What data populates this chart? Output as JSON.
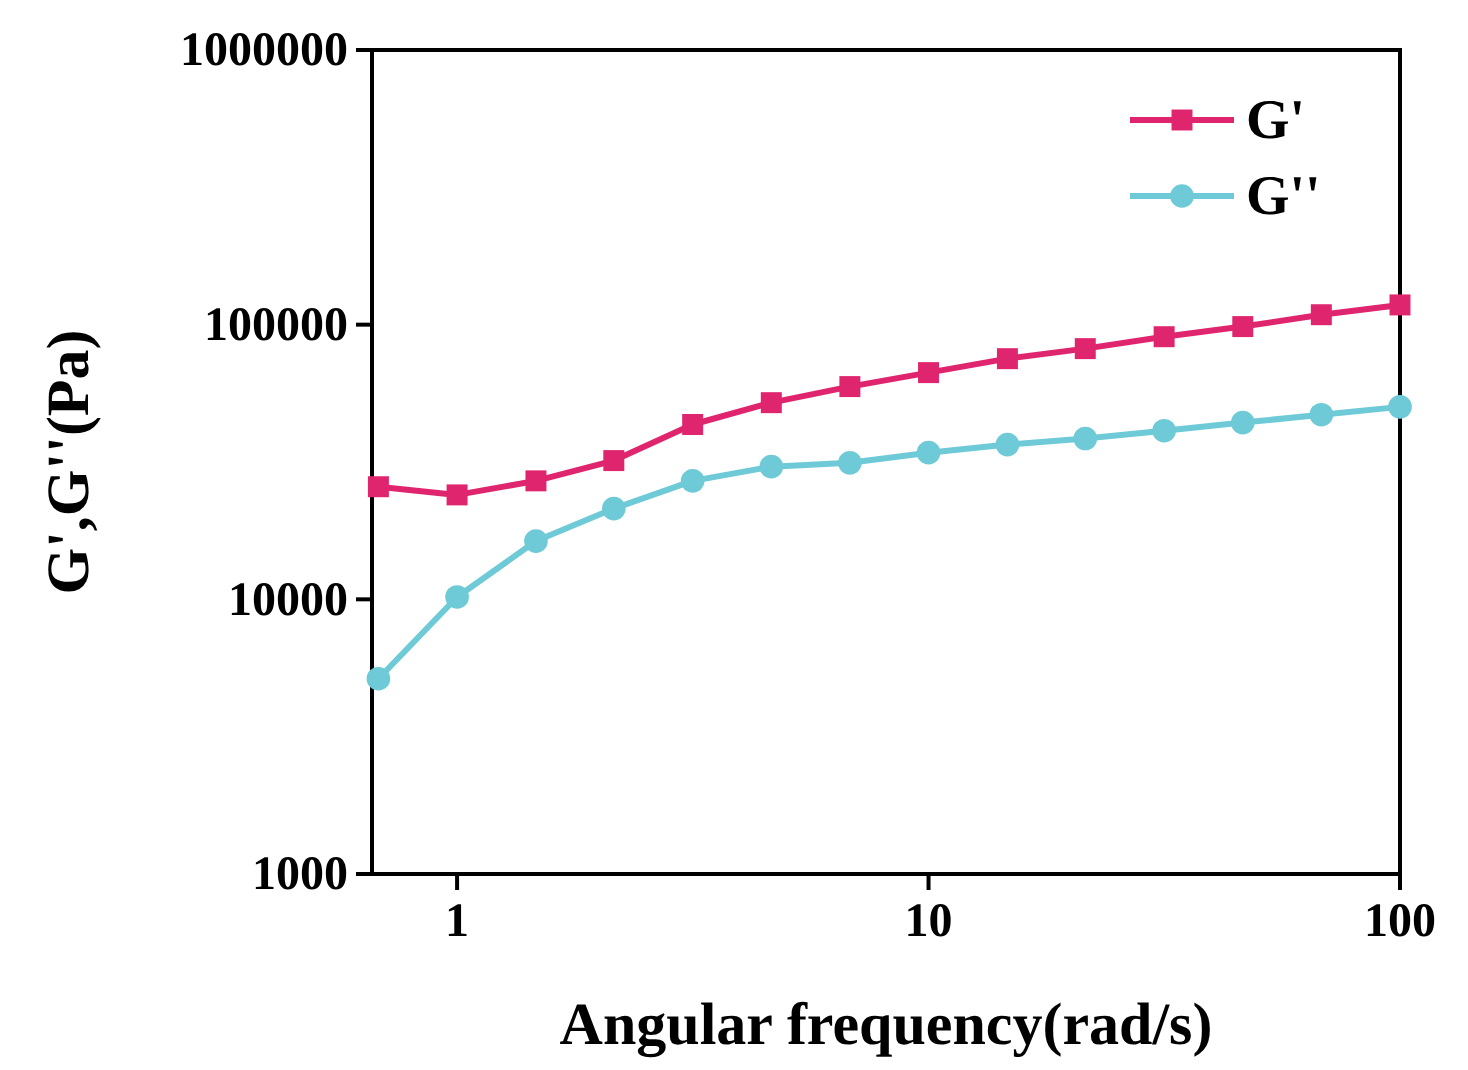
{
  "chart_data": {
    "type": "line",
    "xlabel": "Angular frequency(rad/s)",
    "ylabel": "G',G''(Pa)",
    "x": [
      0.681,
      1,
      1.47,
      2.15,
      3.16,
      4.64,
      6.81,
      10,
      14.7,
      21.5,
      31.6,
      46.4,
      68.1,
      100
    ],
    "series": [
      {
        "name": "G'",
        "color": "#e0256f",
        "marker": "square",
        "values": [
          25700,
          24000,
          27000,
          32000,
          43300,
          52000,
          59500,
          66900,
          75200,
          81800,
          90400,
          98400,
          108700,
          118000
        ]
      },
      {
        "name": "G''",
        "color": "#6ecad6",
        "marker": "circle",
        "values": [
          5140,
          10200,
          16300,
          21400,
          27000,
          30400,
          31400,
          34200,
          36600,
          38500,
          41100,
          44000,
          47000,
          50200
        ]
      }
    ],
    "log": "xy",
    "xlim": [
      0.66,
      100
    ],
    "xticks": [
      1,
      10,
      100
    ],
    "ylim": [
      1000,
      1000000
    ],
    "yticks": [
      1000,
      10000,
      100000,
      1000000
    ],
    "legend": "top right",
    "grid": false,
    "line_style": "solid"
  }
}
